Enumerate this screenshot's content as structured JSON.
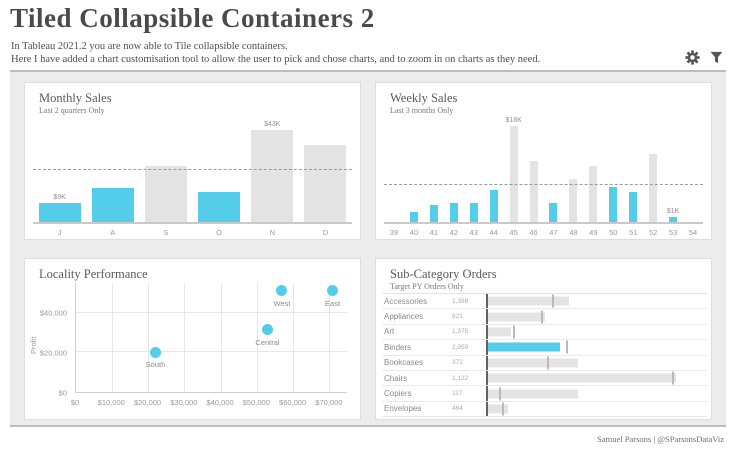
{
  "header": {
    "title": "Tiled Collapsible Containers 2",
    "subtitle_line1": "In Tableau 2021.2 you are now able to Tile collapsible containers.",
    "subtitle_line2": "Here I have added a chart customisation tool to allow the user to pick and chose charts, and to zoom in on charts as they need.",
    "icons": [
      "settings-gear-icon",
      "filter-funnel-icon"
    ]
  },
  "footer": {
    "credit": "Samuel Parsons | @SParsonsDataViz"
  },
  "colors": {
    "accent_blue": "#53cde9",
    "bar_gray": "#e3e3e3",
    "icon_gray": "#555555",
    "dashboard_bg": "#ececec"
  },
  "chart_data": [
    {
      "id": "monthly_sales",
      "type": "bar",
      "title": "Monthly Sales",
      "subtitle": "Last 2 quarters Only",
      "categories": [
        "J",
        "A",
        "S",
        "O",
        "N",
        "D"
      ],
      "values": [
        9,
        16,
        26,
        14,
        43,
        36
      ],
      "unit": "$K",
      "highlighted": [
        true,
        true,
        false,
        true,
        false,
        false
      ],
      "data_labels": {
        "J": "$9K",
        "N": "$43K"
      },
      "ref_line": 24,
      "ylim": [
        0,
        47
      ],
      "grid": false,
      "legend": "none"
    },
    {
      "id": "weekly_sales",
      "type": "bar",
      "title": "Weekly Sales",
      "subtitle": "Last 3 months Only",
      "categories": [
        "39",
        "40",
        "41",
        "42",
        "43",
        "44",
        "45",
        "46",
        "47",
        "48",
        "49",
        "50",
        "51",
        "52",
        "53",
        "54"
      ],
      "values": [
        0,
        1.8,
        3.2,
        3.5,
        3.5,
        6,
        18,
        11.4,
        3.6,
        8,
        10.5,
        6.5,
        5.6,
        12.8,
        1,
        0
      ],
      "unit": "$K",
      "highlighted": [
        false,
        true,
        true,
        true,
        true,
        true,
        false,
        false,
        true,
        false,
        false,
        true,
        true,
        false,
        true,
        false
      ],
      "data_labels": {
        "45": "$18K",
        "53": "$1K"
      },
      "ref_line": 6.9,
      "ylim": [
        0,
        19
      ],
      "grid": false,
      "legend": "none"
    },
    {
      "id": "locality_performance",
      "type": "scatter",
      "title": "Locality Performance",
      "xlabel": "",
      "ylabel": "Profit",
      "x_ticks": [
        "$0",
        "$10,000",
        "$20,000",
        "$30,000",
        "$40,000",
        "$50,000",
        "$60,000",
        "$70,000"
      ],
      "x_tick_values": [
        0,
        10000,
        20000,
        30000,
        40000,
        50000,
        60000,
        70000
      ],
      "y_ticks": [
        "$0",
        "$20,000",
        "$40,000"
      ],
      "y_tick_values": [
        0,
        20000,
        40000
      ],
      "xlim": [
        0,
        75000
      ],
      "ylim": [
        0,
        55000
      ],
      "grid": true,
      "points": [
        {
          "label": "South",
          "x": 22000,
          "y": 20000
        },
        {
          "label": "Central",
          "x": 53000,
          "y": 31500
        },
        {
          "label": "West",
          "x": 57000,
          "y": 51000
        },
        {
          "label": "East",
          "x": 71000,
          "y": 51000
        }
      ]
    },
    {
      "id": "sub_category_orders",
      "type": "bar",
      "orientation": "horizontal",
      "title": "Sub-Category Orders",
      "subtitle": "Target PY Orders Only",
      "rows": [
        {
          "label": "Accessories",
          "orders": "1,398",
          "bar_pct": 37,
          "tick_pct": 29,
          "highlight": false
        },
        {
          "label": "Appliances",
          "orders": "821",
          "bar_pct": 26,
          "tick_pct": 24,
          "highlight": false
        },
        {
          "label": "Art",
          "orders": "1,375",
          "bar_pct": 10.5,
          "tick_pct": 11.5,
          "highlight": false
        },
        {
          "label": "Binders",
          "orders": "2,959",
          "bar_pct": 33,
          "tick_pct": 35.5,
          "highlight": true
        },
        {
          "label": "Bookcases",
          "orders": "372",
          "bar_pct": 41,
          "tick_pct": 27,
          "highlight": false
        },
        {
          "label": "Chairs",
          "orders": "1,122",
          "bar_pct": 86,
          "tick_pct": 84,
          "highlight": false
        },
        {
          "label": "Copiers",
          "orders": "117",
          "bar_pct": 41,
          "tick_pct": 5,
          "highlight": false
        },
        {
          "label": "Envelopes",
          "orders": "464",
          "bar_pct": 9,
          "tick_pct": 6.5,
          "highlight": false
        }
      ]
    }
  ]
}
